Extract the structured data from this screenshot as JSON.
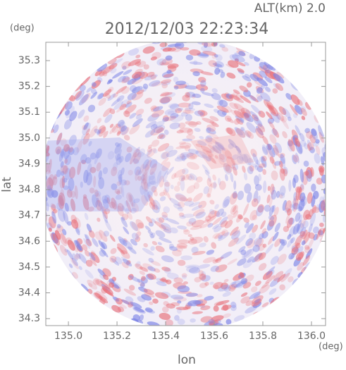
{
  "chart_data": {
    "type": "image",
    "title": "2012/12/03 22:23:34",
    "subtitle": "ALT(km) 2.0",
    "x_label": "lon",
    "y_label": "lat",
    "x_unit": "(deg)",
    "y_unit": "(deg)",
    "xlim": [
      134.907,
      136.058
    ],
    "ylim": [
      34.273,
      35.371
    ],
    "xticks": [
      {
        "value": 135.0,
        "label": "135.0"
      },
      135.2,
      135.4,
      135.6,
      135.8,
      {
        "value": 136.0,
        "label": "136.0"
      }
    ],
    "yticks": [
      34.3,
      34.4,
      34.5,
      34.6,
      34.7,
      34.8,
      34.9,
      {
        "value": 35.0,
        "label": "35.0"
      },
      35.1,
      35.2,
      35.3
    ]
  }
}
